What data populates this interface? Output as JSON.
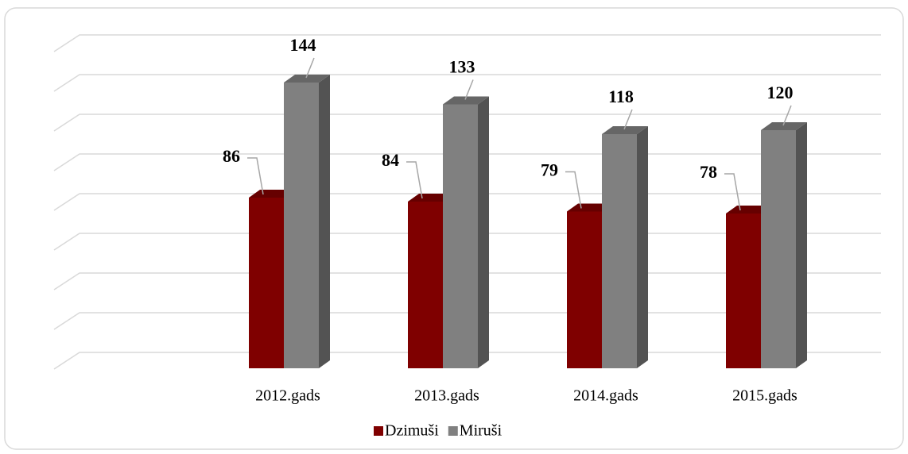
{
  "chart_data": {
    "type": "bar3d",
    "categories": [
      "2012.gads",
      "2013.gads",
      "2014.gads",
      "2015.gads"
    ],
    "series": [
      {
        "name": "Dzimuši",
        "color": "#7f0000",
        "values": [
          86,
          84,
          79,
          78
        ]
      },
      {
        "name": "Miruši",
        "color": "#808080",
        "values": [
          144,
          133,
          118,
          120
        ]
      }
    ],
    "ylim": [
      0,
      160
    ],
    "yticks": [
      0,
      20,
      40,
      60,
      80,
      100,
      120,
      140,
      160
    ],
    "grid": true,
    "legend": "bottom"
  }
}
